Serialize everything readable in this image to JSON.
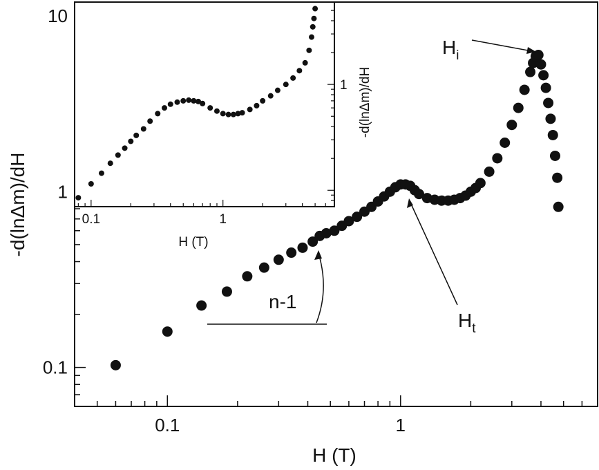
{
  "chart_data": [
    {
      "type": "scatter",
      "xlabel": "H (T)",
      "ylabel": "-d(lnΔm)/dH",
      "xscale": "log",
      "yscale": "log",
      "xlim": [
        0.04,
        7
      ],
      "ylim": [
        0.06,
        12
      ],
      "xticks": [
        {
          "value": 0.1,
          "label": "0.1"
        },
        {
          "value": 1,
          "label": "1"
        }
      ],
      "yticks": [
        {
          "value": 0.1,
          "label": "0.1"
        },
        {
          "value": 1,
          "label": "1"
        },
        {
          "value": 10,
          "label": "10"
        }
      ],
      "marker_color": "#111111",
      "series": [
        {
          "x": [
            0.06,
            0.1,
            0.14,
            0.18,
            0.22,
            0.26,
            0.3,
            0.34,
            0.38,
            0.42,
            0.45,
            0.48,
            0.52,
            0.56,
            0.6,
            0.65,
            0.7,
            0.75,
            0.8,
            0.85,
            0.9,
            0.95,
            1.0,
            1.05,
            1.1,
            1.15,
            1.2,
            1.3,
            1.4,
            1.5,
            1.6,
            1.7,
            1.8,
            1.9,
            2.0,
            2.1,
            2.2,
            2.4,
            2.6,
            2.8,
            3.0,
            3.2,
            3.4,
            3.6,
            3.7,
            3.8,
            3.9,
            4.0,
            4.1,
            4.2,
            4.3,
            4.4,
            4.5,
            4.6,
            4.7,
            4.75
          ],
          "y": [
            0.103,
            0.16,
            0.225,
            0.27,
            0.33,
            0.37,
            0.41,
            0.45,
            0.48,
            0.52,
            0.56,
            0.58,
            0.6,
            0.64,
            0.68,
            0.72,
            0.77,
            0.82,
            0.88,
            0.94,
            1.0,
            1.06,
            1.1,
            1.1,
            1.08,
            1.02,
            0.97,
            0.92,
            0.9,
            0.89,
            0.89,
            0.9,
            0.92,
            0.95,
            1.0,
            1.05,
            1.12,
            1.3,
            1.55,
            1.9,
            2.4,
            3.0,
            3.8,
            4.8,
            5.4,
            5.9,
            6.0,
            5.3,
            4.6,
            3.9,
            3.2,
            2.6,
            2.1,
            1.6,
            1.2,
            0.82
          ]
        }
      ],
      "annotations": [
        {
          "text": "H",
          "sub": "i"
        },
        {
          "text": "H",
          "sub": "t"
        },
        {
          "text": "n-1"
        }
      ]
    },
    {
      "type": "scatter",
      "xlabel": "H (T)",
      "ylabel": "-d(lnΔm)/dH",
      "xscale": "log",
      "yscale": "log",
      "xlim": [
        0.075,
        7
      ],
      "ylim": [
        0.07,
        6
      ],
      "xticks": [
        {
          "value": 0.1,
          "label": "0.1"
        },
        {
          "value": 1,
          "label": "1"
        }
      ],
      "yticks": [
        {
          "value": 1,
          "label": "1"
        }
      ],
      "marker_color": "#111111",
      "series": [
        {
          "x": [
            0.08,
            0.1,
            0.12,
            0.14,
            0.16,
            0.18,
            0.2,
            0.22,
            0.25,
            0.28,
            0.32,
            0.36,
            0.4,
            0.45,
            0.5,
            0.55,
            0.6,
            0.65,
            0.7,
            0.8,
            0.9,
            1.0,
            1.1,
            1.2,
            1.3,
            1.4,
            1.6,
            1.8,
            2.0,
            2.3,
            2.6,
            3.0,
            3.4,
            3.8,
            4.2,
            4.5,
            4.7,
            4.8,
            4.9,
            5.0
          ],
          "y": [
            0.085,
            0.115,
            0.145,
            0.18,
            0.215,
            0.25,
            0.29,
            0.33,
            0.38,
            0.45,
            0.53,
            0.6,
            0.65,
            0.68,
            0.7,
            0.71,
            0.7,
            0.69,
            0.66,
            0.6,
            0.56,
            0.53,
            0.52,
            0.52,
            0.53,
            0.54,
            0.58,
            0.63,
            0.7,
            0.78,
            0.88,
            1.0,
            1.15,
            1.35,
            1.6,
            2.1,
            2.8,
            3.5,
            4.2,
            5.2
          ]
        }
      ]
    }
  ]
}
